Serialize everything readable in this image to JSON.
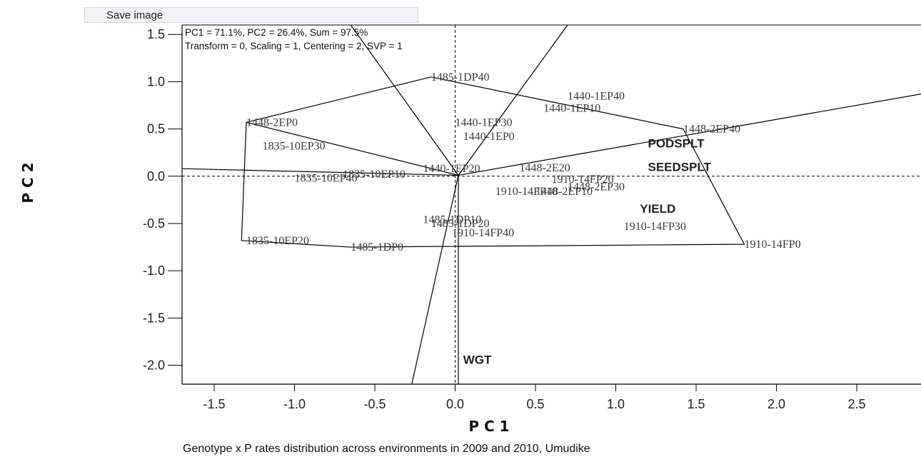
{
  "toolbar": {
    "save_image_label": "Save image"
  },
  "chart_data": {
    "type": "scatter",
    "subtype": "GGE biplot",
    "header_lines": [
      "PC1 = 71.1%, PC2 = 26.4%, Sum = 97.5%",
      "Transform = 0, Scaling = 1, Centering = 2, SVP = 1"
    ],
    "xlabel": "P C 1",
    "ylabel": "P C 2",
    "caption": "Genotype x P rates distribution across environments in 2009 and 2010, Umudike",
    "xlim": [
      -1.7,
      2.9
    ],
    "ylim": [
      -2.2,
      1.6
    ],
    "xticks": [
      "-1.5",
      "-1.0",
      "-0.5",
      "0.0",
      "0.5",
      "1.0",
      "1.5",
      "2.0",
      "2.5"
    ],
    "yticks": [
      "1.5",
      "1.0",
      "0.5",
      "0.0",
      "-0.5",
      "-1.0",
      "-1.5",
      "-2.0"
    ],
    "genotypes": [
      {
        "label": "1485-1DP40",
        "x": -0.15,
        "y": 1.05
      },
      {
        "label": "1440-1EP40",
        "x": 0.7,
        "y": 0.85
      },
      {
        "label": "1440-1EP10",
        "x": 0.55,
        "y": 0.72
      },
      {
        "label": "1448-2EP0",
        "x": -1.3,
        "y": 0.57
      },
      {
        "label": "1440-1EP30",
        "x": 0.0,
        "y": 0.57
      },
      {
        "label": "1440-1EP0",
        "x": 0.05,
        "y": 0.42
      },
      {
        "label": "1835-10EP30",
        "x": -1.2,
        "y": 0.32
      },
      {
        "label": "1448-2EP40",
        "x": 1.42,
        "y": 0.5
      },
      {
        "label": "1440-1EP20",
        "x": -0.2,
        "y": 0.08
      },
      {
        "label": "1448-2E20",
        "x": 0.4,
        "y": 0.09
      },
      {
        "label": "1835-10EP10",
        "x": -0.7,
        "y": 0.02
      },
      {
        "label": "1835-10EP40",
        "x": -1.0,
        "y": -0.02
      },
      {
        "label": "1910-14FP20",
        "x": 0.6,
        "y": -0.03
      },
      {
        "label": "1448-2EP30",
        "x": 0.7,
        "y": -0.11
      },
      {
        "label": "1910-14FP10",
        "x": 0.25,
        "y": -0.16
      },
      {
        "label": "1448-2EP10",
        "x": 0.5,
        "y": -0.16
      },
      {
        "label": "1485-1DP10",
        "x": -0.2,
        "y": -0.46
      },
      {
        "label": "1485-1DP20",
        "x": -0.15,
        "y": -0.5
      },
      {
        "label": "1910-14FP30",
        "x": 1.05,
        "y": -0.53
      },
      {
        "label": "1910-14FP40",
        "x": -0.02,
        "y": -0.6
      },
      {
        "label": "1835-10EP20",
        "x": -1.3,
        "y": -0.68
      },
      {
        "label": "1485-1DP0",
        "x": -0.65,
        "y": -0.75
      },
      {
        "label": "1910-14FP0",
        "x": 1.8,
        "y": -0.72
      }
    ],
    "environments": [
      {
        "label": "PODSPLT",
        "x": 1.2,
        "y": 0.35
      },
      {
        "label": "SEEDSPLT",
        "x": 1.2,
        "y": 0.1
      },
      {
        "label": "YIELD",
        "x": 1.15,
        "y": -0.34
      },
      {
        "label": "WGT",
        "x": 0.05,
        "y": -1.94
      }
    ],
    "hull_vertices": [
      {
        "x": -0.15,
        "y": 1.05
      },
      {
        "x": 1.42,
        "y": 0.5
      },
      {
        "x": 1.8,
        "y": -0.72
      },
      {
        "x": -0.65,
        "y": -0.75
      },
      {
        "x": -1.33,
        "y": -0.68
      },
      {
        "x": -1.3,
        "y": 0.57
      }
    ],
    "sector_rays": [
      {
        "x": -0.65,
        "y": 1.6
      },
      {
        "x": 0.7,
        "y": 1.6
      },
      {
        "x": 2.9,
        "y": 0.87
      },
      {
        "x": -1.7,
        "y": 0.08
      },
      {
        "x": 0.02,
        "y": -2.2
      },
      {
        "x": -0.27,
        "y": -2.2
      }
    ],
    "vertex_connector": {
      "from": {
        "x": -1.3,
        "y": 0.57
      },
      "to": {
        "x": 0.02,
        "y": 0.01
      }
    },
    "reference_lines": {
      "x": 0,
      "y": 0,
      "style": "dashed"
    },
    "grid": false,
    "legend": "none"
  }
}
